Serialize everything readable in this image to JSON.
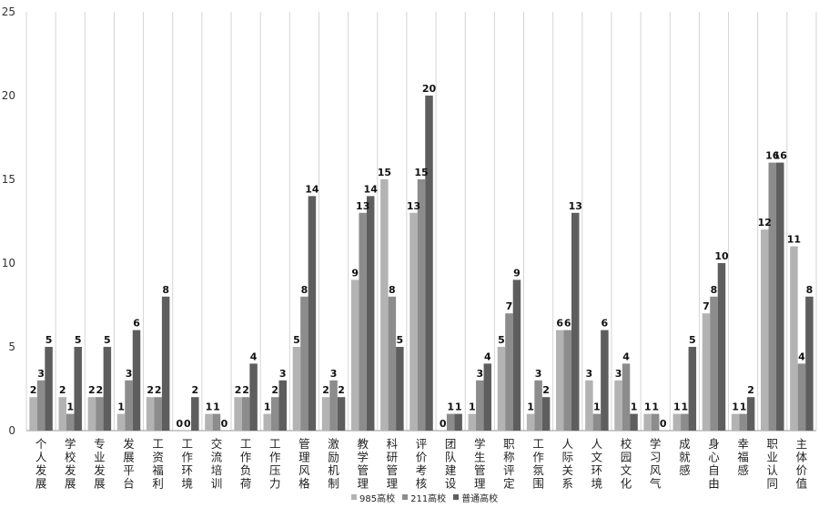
{
  "chart_data": {
    "type": "bar",
    "title": "",
    "xlabel": "",
    "ylabel": "",
    "ylim": [
      0,
      25
    ],
    "yticks": [
      0,
      5,
      10,
      15,
      20,
      25
    ],
    "grid": "vertical category separators",
    "legend_position": "bottom",
    "categories": [
      "个人发展",
      "学校发展",
      "专业发展",
      "发展平台",
      "工资福利",
      "工作环境",
      "交流培训",
      "工作负荷",
      "工作压力",
      "管理风格",
      "激励机制",
      "教学管理",
      "科研管理",
      "评价考核",
      "团队建设",
      "学生管理",
      "职称评定",
      "工作氛围",
      "人际关系",
      "人文环境",
      "校园文化",
      "学习风气",
      "成就感",
      "身心自由",
      "幸福感",
      "职业认同",
      "主体价值"
    ],
    "series": [
      {
        "name": "985高校",
        "color": "#b3b3b3",
        "values": [
          2,
          2,
          2,
          1,
          2,
          0,
          1,
          2,
          1,
          5,
          2,
          9,
          15,
          13,
          0,
          1,
          5,
          1,
          6,
          3,
          3,
          1,
          1,
          7,
          1,
          12,
          11
        ]
      },
      {
        "name": "211高校",
        "color": "#8c8c8c",
        "values": [
          3,
          1,
          2,
          3,
          2,
          0,
          1,
          2,
          2,
          8,
          3,
          13,
          8,
          15,
          1,
          3,
          7,
          3,
          6,
          1,
          4,
          1,
          1,
          8,
          1,
          16,
          4
        ]
      },
      {
        "name": "普通高校",
        "color": "#5e5e5e",
        "values": [
          5,
          5,
          5,
          6,
          8,
          2,
          0,
          4,
          3,
          14,
          2,
          14,
          5,
          20,
          1,
          4,
          9,
          2,
          13,
          6,
          1,
          0,
          5,
          10,
          2,
          16,
          8
        ]
      }
    ]
  }
}
